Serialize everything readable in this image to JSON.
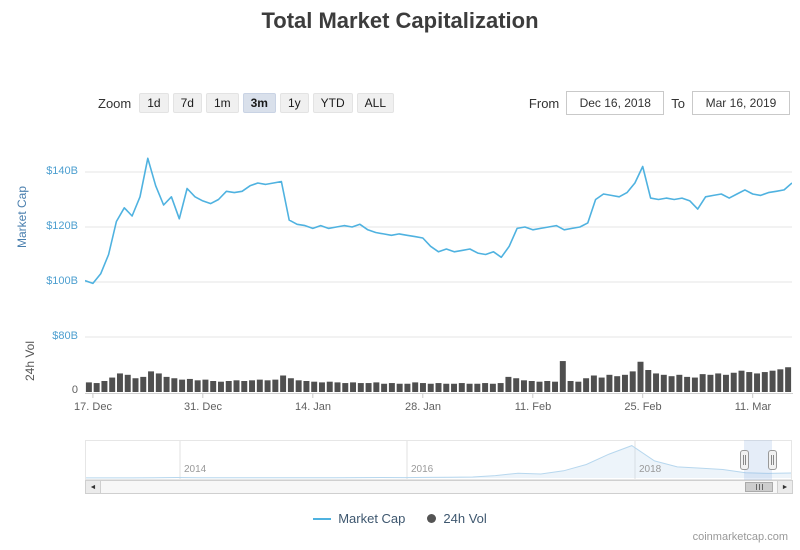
{
  "title": "Total Market Capitalization",
  "range_selector": {
    "zoom_label": "Zoom",
    "buttons": [
      {
        "label": "1d"
      },
      {
        "label": "7d"
      },
      {
        "label": "1m"
      },
      {
        "label": "3m"
      },
      {
        "label": "1y"
      },
      {
        "label": "YTD"
      },
      {
        "label": "ALL"
      }
    ],
    "selected": "3m",
    "from_label": "From",
    "from_value": "Dec 16, 2018",
    "to_label": "To",
    "to_value": "Mar 16, 2019"
  },
  "chart_data": {
    "type": "line",
    "title": "Total Market Capitalization",
    "x_range": [
      "Dec 16, 2018",
      "Mar 16, 2019"
    ],
    "x_ticklabels": [
      "17. Dec",
      "31. Dec",
      "14. Jan",
      "28. Jan",
      "11. Feb",
      "25. Feb",
      "11. Mar"
    ],
    "tick_indices": [
      1,
      15,
      29,
      43,
      57,
      71,
      85
    ],
    "grid": true,
    "legend_position": "bottom",
    "charts": [
      {
        "type": "line",
        "name": "Market Cap",
        "color": "#4FB2E0",
        "axis_title": "Market Cap",
        "unit": "billion USD",
        "ylim": [
          96,
          148
        ],
        "yticks": [
          {
            "label": "$140B",
            "value": 140
          },
          {
            "label": "$120B",
            "value": 120
          },
          {
            "label": "$100B",
            "value": 100
          }
        ],
        "values": [
          100.5,
          99.5,
          103,
          110,
          122,
          127,
          124,
          131,
          145,
          135,
          128,
          131,
          123,
          134,
          131,
          129.5,
          128.5,
          130,
          133,
          132.5,
          133,
          135,
          136,
          135.5,
          136,
          136.5,
          122.5,
          121,
          120.5,
          119.5,
          120.5,
          119.5,
          120,
          120.5,
          120,
          121,
          119,
          118,
          117.5,
          117,
          117.5,
          117,
          116.5,
          116,
          113,
          111,
          112,
          111,
          111.5,
          112,
          110.5,
          110,
          111,
          109,
          113,
          119.5,
          120,
          119,
          119.5,
          120,
          120.5,
          119,
          119.5,
          120,
          121.5,
          130,
          132,
          131.5,
          131,
          132.5,
          136,
          142,
          130.5,
          130,
          130.5,
          130,
          130.5,
          129.5,
          126.5,
          131,
          131.5,
          132,
          130.5,
          132,
          133.5,
          132,
          131.5,
          132.5,
          133,
          133.5,
          136
        ]
      },
      {
        "type": "area",
        "name": "24h Vol",
        "color": "#4f4f4f",
        "axis_title": "24h Vol",
        "unit": "billion USD",
        "ylim": [
          0,
          80
        ],
        "yticks": [
          {
            "label": "$80B",
            "value": 80
          },
          {
            "label": "0",
            "value": 0
          }
        ],
        "values": [
          14,
          13,
          16,
          21,
          27,
          25,
          20,
          22,
          30,
          27,
          22,
          20,
          18,
          19,
          17,
          18,
          16,
          15,
          16,
          17,
          16,
          17,
          18,
          17,
          18,
          24,
          20,
          17,
          16,
          15,
          14,
          15,
          14,
          13,
          14,
          13,
          13,
          14,
          12,
          13,
          12,
          12,
          14,
          13,
          12,
          13,
          12,
          12,
          13,
          12,
          12,
          13,
          12,
          13,
          22,
          20,
          17,
          16,
          15,
          16,
          15,
          45,
          16,
          15,
          20,
          24,
          21,
          25,
          23,
          25,
          30,
          44,
          32,
          27,
          25,
          23,
          25,
          22,
          21,
          26,
          25,
          27,
          25,
          28,
          31,
          29,
          27,
          29,
          31,
          33,
          36
        ]
      }
    ]
  },
  "navigator": {
    "year_labels": [
      "2014",
      "2016",
      "2018"
    ],
    "series_max": 830,
    "series": [
      2,
      2,
      3,
      8,
      12,
      7,
      5,
      4,
      4,
      5,
      6,
      8,
      9,
      12,
      11,
      14,
      17,
      25,
      60,
      120,
      100,
      180,
      340,
      600,
      815,
      430,
      280,
      250,
      215,
      130,
      115,
      125
    ]
  },
  "scrollbar": {
    "left_arrow": "◄",
    "right_arrow": "►"
  },
  "legend": {
    "items": [
      {
        "label": "Market Cap",
        "marker": "line",
        "color": "#4FB2E0"
      },
      {
        "label": "24h Vol",
        "marker": "circle",
        "color": "#545454"
      }
    ]
  },
  "watermark": "coinmarketcap.com"
}
